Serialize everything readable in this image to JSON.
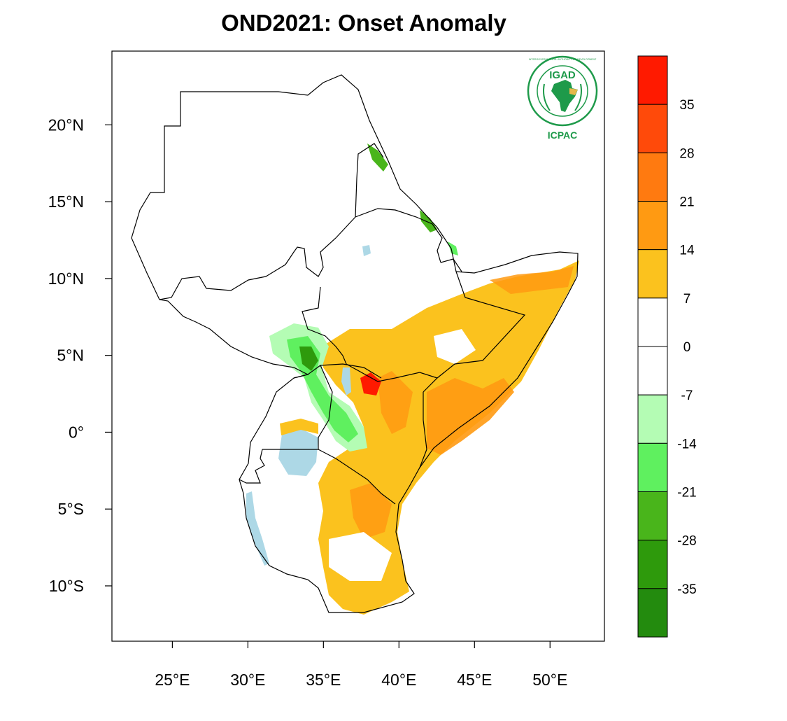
{
  "title": "OND2021: Onset Anomaly",
  "map": {
    "lon_range": [
      21,
      53.6
    ],
    "lat_range": [
      -13.6,
      24.8
    ],
    "lon_ticks": [
      {
        "value": 25,
        "label": "25°E"
      },
      {
        "value": 30,
        "label": "30°E"
      },
      {
        "value": 35,
        "label": "35°E"
      },
      {
        "value": 40,
        "label": "40°E"
      },
      {
        "value": 45,
        "label": "45°E"
      },
      {
        "value": 50,
        "label": "50°E"
      }
    ],
    "lat_ticks": [
      {
        "value": 20,
        "label": "20°N"
      },
      {
        "value": 15,
        "label": "15°N"
      },
      {
        "value": 10,
        "label": "10°N"
      },
      {
        "value": 5,
        "label": "5°N"
      },
      {
        "value": 0,
        "label": "0°"
      },
      {
        "value": -5,
        "label": "5°S"
      },
      {
        "value": -10,
        "label": "10°S"
      }
    ]
  },
  "colorbar": {
    "labels": [
      "35",
      "28",
      "21",
      "14",
      "7",
      "0",
      "-7",
      "-14",
      "-21",
      "-28",
      "-35"
    ],
    "colors": [
      "#ff1a00",
      "#ff4a0a",
      "#ff7a10",
      "#ff9a12",
      "#fbc21e",
      "#ffffff",
      "#ffffff",
      "#b4fcb4",
      "#5ff05f",
      "#49b51b",
      "#2e9a0c",
      "#238b0e"
    ]
  },
  "logo": {
    "top_text": "IGAD",
    "bottom_text": "ICPAC",
    "ring_text": "INTERGOVERNMENTAL AUTHORITY ON DEVELOPMENT",
    "color": "#1e9a4a"
  }
}
